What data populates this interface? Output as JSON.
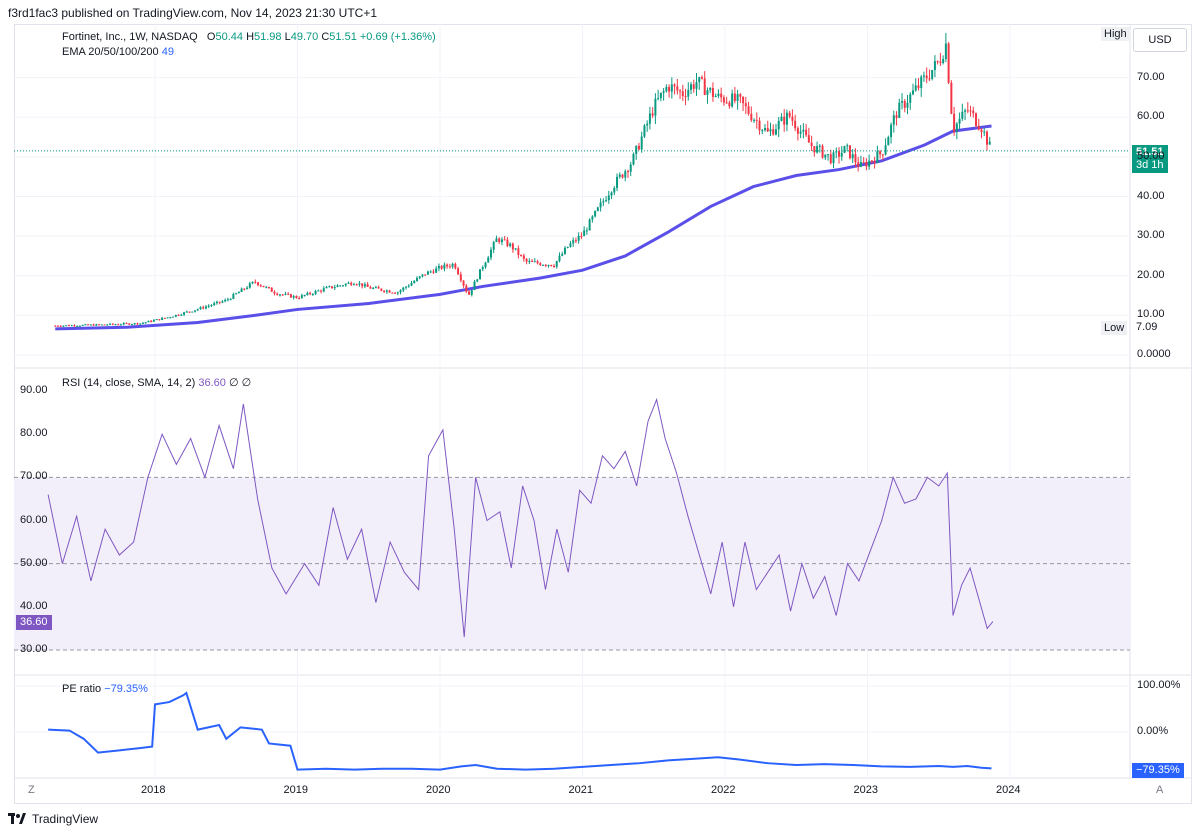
{
  "header": {
    "publisher_line": "f3rd1fac3 published on TradingView.com, Nov 14, 2023 21:30 UTC+1"
  },
  "footer": {
    "brand": "TradingView",
    "left_button": "Z",
    "right_button": "A"
  },
  "price_pane": {
    "symbol_line": "Fortinet, Inc., 1W, NASDAQ",
    "ohlc": {
      "o_label": "O",
      "o": "50.44",
      "h_label": "H",
      "h": "51.98",
      "l_label": "L",
      "l": "49.70",
      "c_label": "C",
      "c": "51.51",
      "change": "+0.69 (+1.36%)"
    },
    "ema_label": "EMA 20/50/100/200",
    "ema_value": "49",
    "currency_button": "USD",
    "high_label": "High",
    "low_label": "Low",
    "low_value": "7.09",
    "last_price": "51.51",
    "countdown": "3d 1h",
    "y_ticks": [
      "70.00",
      "60.00",
      "50.00",
      "40.00",
      "30.00",
      "20.00",
      "10.00",
      "0.0000"
    ]
  },
  "rsi_pane": {
    "label": "RSI (14, close, SMA, 14, 2)",
    "value": "36.60",
    "extra": "∅ ∅",
    "y_ticks": [
      "90.00",
      "80.00",
      "70.00",
      "60.00",
      "50.00",
      "40.00",
      "30.00"
    ]
  },
  "pe_pane": {
    "label": "PE ratio",
    "value": "−79.35%",
    "y_ticks": [
      "100.00%",
      "0.00%"
    ],
    "last_tag": "−79.35%"
  },
  "x_axis": {
    "ticks": [
      "2018",
      "2019",
      "2020",
      "2021",
      "2022",
      "2023",
      "2024"
    ]
  },
  "colors": {
    "up": "#089981",
    "down": "#f23645",
    "ema": "#5b4fe9",
    "rsi": "#7e57c2",
    "pe": "#2962ff",
    "rsi_band": "#f3effa"
  },
  "chart_data": [
    {
      "type": "candlestick",
      "title": "Fortinet, Inc., 1W, NASDAQ",
      "x": [
        2017.3,
        2017.6,
        2017.9,
        2018.1,
        2018.3,
        2018.5,
        2018.7,
        2018.85,
        2019.0,
        2019.2,
        2019.4,
        2019.5,
        2019.7,
        2019.9,
        2020.0,
        2020.1,
        2020.2,
        2020.3,
        2020.4,
        2020.5,
        2020.6,
        2020.8,
        2020.9,
        2021.0,
        2021.1,
        2021.2,
        2021.35,
        2021.5,
        2021.6,
        2021.7,
        2021.8,
        2021.95,
        2022.1,
        2022.2,
        2022.3,
        2022.45,
        2022.6,
        2022.75,
        2022.85,
        2022.95,
        2023.1,
        2023.2,
        2023.35,
        2023.5,
        2023.55,
        2023.6,
        2023.7,
        2023.8,
        2023.87
      ],
      "close": [
        7.4,
        7.6,
        8.0,
        9.6,
        11.6,
        13.8,
        18.5,
        15.6,
        14.5,
        16.8,
        18.4,
        17.0,
        15.8,
        20.6,
        22.0,
        23.0,
        15.0,
        22.5,
        29.4,
        27.5,
        23.5,
        22.8,
        27.5,
        30.4,
        36.2,
        42.0,
        49.0,
        62.5,
        68.0,
        66.0,
        69.0,
        65.0,
        64.0,
        60.0,
        56.0,
        60.5,
        53.0,
        49.5,
        52.0,
        47.5,
        51.0,
        61.0,
        67.5,
        74.0,
        78.5,
        57.0,
        62.0,
        57.5,
        51.51
      ],
      "ylim": [
        0,
        80
      ],
      "low": 7.09,
      "last": 51.51,
      "ema200": [
        [
          2017.3,
          6.6
        ],
        [
          2017.8,
          7.0
        ],
        [
          2018.3,
          8.2
        ],
        [
          2018.7,
          10.0
        ],
        [
          2019.0,
          11.5
        ],
        [
          2019.5,
          13.0
        ],
        [
          2020.0,
          15.3
        ],
        [
          2020.3,
          17.3
        ],
        [
          2020.7,
          19.4
        ],
        [
          2021.0,
          21.4
        ],
        [
          2021.3,
          25.0
        ],
        [
          2021.6,
          31.0
        ],
        [
          2021.9,
          37.5
        ],
        [
          2022.2,
          42.5
        ],
        [
          2022.5,
          45.3
        ],
        [
          2022.8,
          46.8
        ],
        [
          2023.1,
          49.0
        ],
        [
          2023.4,
          53.0
        ],
        [
          2023.6,
          56.5
        ],
        [
          2023.87,
          57.8
        ]
      ]
    },
    {
      "type": "line",
      "title": "RSI (14, close, SMA, 14, 2)",
      "x": [
        2017.25,
        2017.35,
        2017.45,
        2017.55,
        2017.65,
        2017.75,
        2017.85,
        2017.95,
        2018.05,
        2018.15,
        2018.25,
        2018.35,
        2018.45,
        2018.55,
        2018.62,
        2018.72,
        2018.82,
        2018.92,
        2019.05,
        2019.15,
        2019.25,
        2019.35,
        2019.45,
        2019.55,
        2019.65,
        2019.75,
        2019.85,
        2019.92,
        2020.02,
        2020.1,
        2020.17,
        2020.25,
        2020.33,
        2020.42,
        2020.5,
        2020.58,
        2020.66,
        2020.74,
        2020.82,
        2020.9,
        2020.98,
        2021.06,
        2021.14,
        2021.22,
        2021.3,
        2021.38,
        2021.46,
        2021.52,
        2021.58,
        2021.66,
        2021.74,
        2021.82,
        2021.9,
        2021.98,
        2022.06,
        2022.14,
        2022.22,
        2022.3,
        2022.38,
        2022.46,
        2022.54,
        2022.62,
        2022.7,
        2022.78,
        2022.86,
        2022.94,
        2023.02,
        2023.1,
        2023.18,
        2023.26,
        2023.34,
        2023.42,
        2023.5,
        2023.56,
        2023.6,
        2023.66,
        2023.72,
        2023.78,
        2023.84,
        2023.88
      ],
      "y": [
        66,
        50,
        61,
        46,
        58,
        52,
        55,
        70,
        80,
        73,
        79,
        70,
        82,
        72,
        87,
        65,
        49,
        43,
        50,
        45,
        63,
        51,
        58,
        41,
        55,
        48,
        44,
        75,
        81,
        58,
        33,
        70,
        60,
        62,
        49,
        68,
        60,
        44,
        58,
        48,
        67,
        64,
        75,
        72,
        76,
        68,
        83,
        88,
        79,
        71,
        61,
        52,
        43,
        55,
        40,
        55,
        44,
        48,
        52,
        39,
        50,
        42,
        47,
        38,
        50,
        46,
        53,
        60,
        70,
        64,
        65,
        70,
        68,
        71,
        38,
        45,
        49,
        42,
        35,
        36.6
      ],
      "ylim": [
        30,
        90
      ],
      "bands": [
        30,
        50,
        70
      ]
    },
    {
      "type": "line",
      "title": "PE ratio",
      "x": [
        2017.25,
        2017.4,
        2017.5,
        2017.6,
        2017.75,
        2017.9,
        2017.98,
        2018.0,
        2018.1,
        2018.2,
        2018.22,
        2018.3,
        2018.45,
        2018.5,
        2018.6,
        2018.75,
        2018.8,
        2018.95,
        2019.0,
        2019.2,
        2019.4,
        2019.6,
        2019.8,
        2020.0,
        2020.15,
        2020.25,
        2020.4,
        2020.6,
        2020.8,
        2021.0,
        2021.2,
        2021.4,
        2021.6,
        2021.8,
        2021.95,
        2022.1,
        2022.3,
        2022.5,
        2022.7,
        2022.9,
        2023.1,
        2023.3,
        2023.5,
        2023.6,
        2023.7,
        2023.8,
        2023.87
      ],
      "y": [
        5,
        3,
        -15,
        -45,
        -40,
        -35,
        -32,
        60,
        65,
        80,
        85,
        5,
        15,
        -15,
        10,
        5,
        -25,
        -30,
        -82,
        -80,
        -82,
        -80,
        -80,
        -82,
        -75,
        -72,
        -80,
        -82,
        -80,
        -76,
        -72,
        -68,
        -62,
        -58,
        -55,
        -60,
        -68,
        -72,
        -70,
        -72,
        -75,
        -76,
        -74,
        -76,
        -74,
        -78,
        -79.35
      ],
      "ylim": [
        -85,
        100
      ]
    }
  ]
}
